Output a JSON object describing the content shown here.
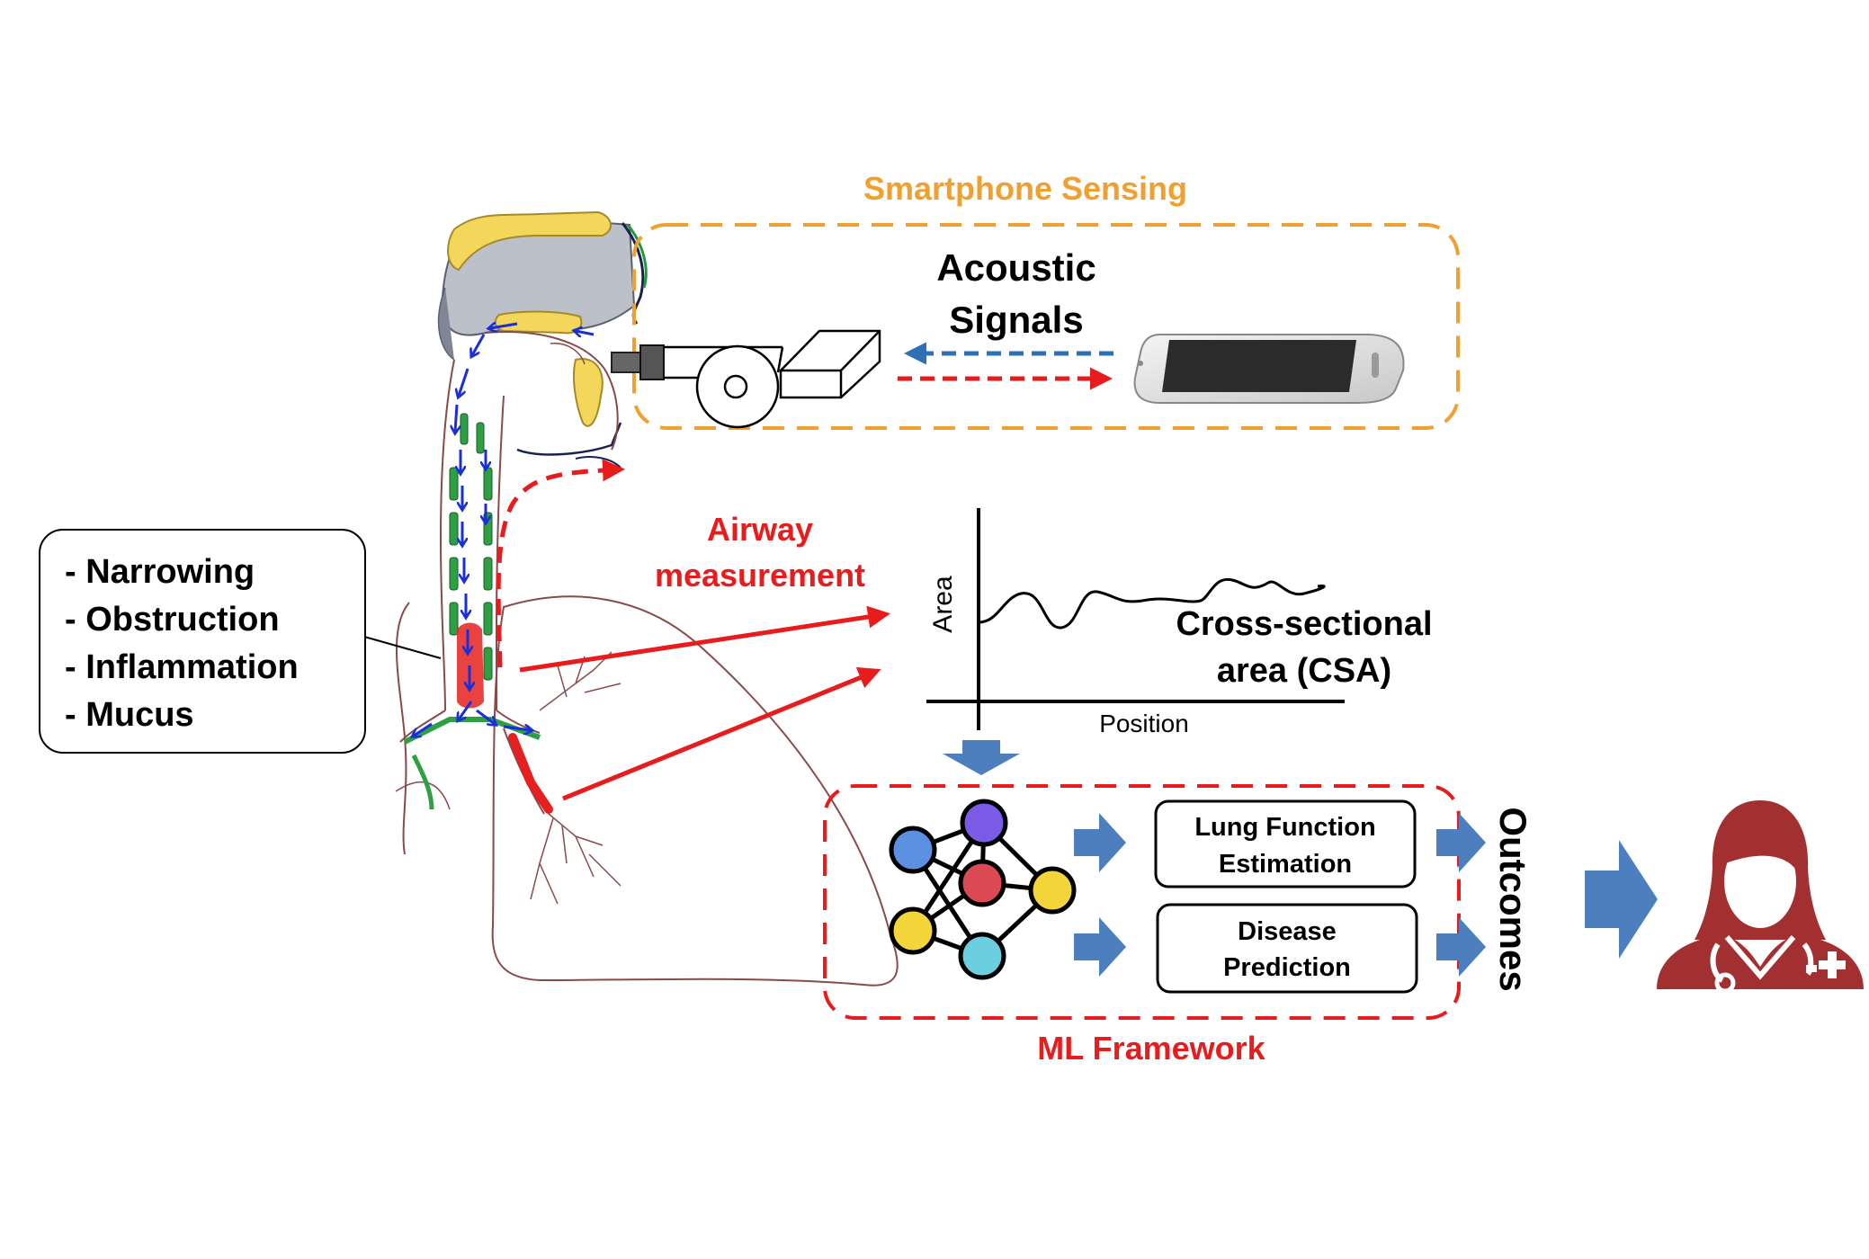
{
  "sensing": {
    "title": "Smartphone Sensing",
    "signal_line1": "Acoustic",
    "signal_line2": "Signals"
  },
  "airway": {
    "label_line1": "Airway",
    "label_line2": "measurement"
  },
  "conditions": [
    "- Narrowing",
    "- Obstruction",
    "- Inflammation",
    "- Mucus"
  ],
  "csa_chart": {
    "ylabel": "Area",
    "xlabel": "Position",
    "label_line1": "Cross-sectional",
    "label_line2": "area (CSA)"
  },
  "ml": {
    "title": "ML Framework",
    "box1_line1": "Lung Function",
    "box1_line2": "Estimation",
    "box2_line1": "Disease",
    "box2_line2": "Prediction",
    "outcomes": "Outcomes"
  },
  "colors": {
    "orange": "#f0a030",
    "red": "#e81c1c",
    "blue_arrow": "#4d7fbf",
    "doctor": "#a33030",
    "node_blue": "#5b8fe0",
    "node_purple": "#7b5ae6",
    "node_red": "#dc4b55",
    "node_yellow": "#f3d53a",
    "node_cyan": "#6ccfdf"
  }
}
